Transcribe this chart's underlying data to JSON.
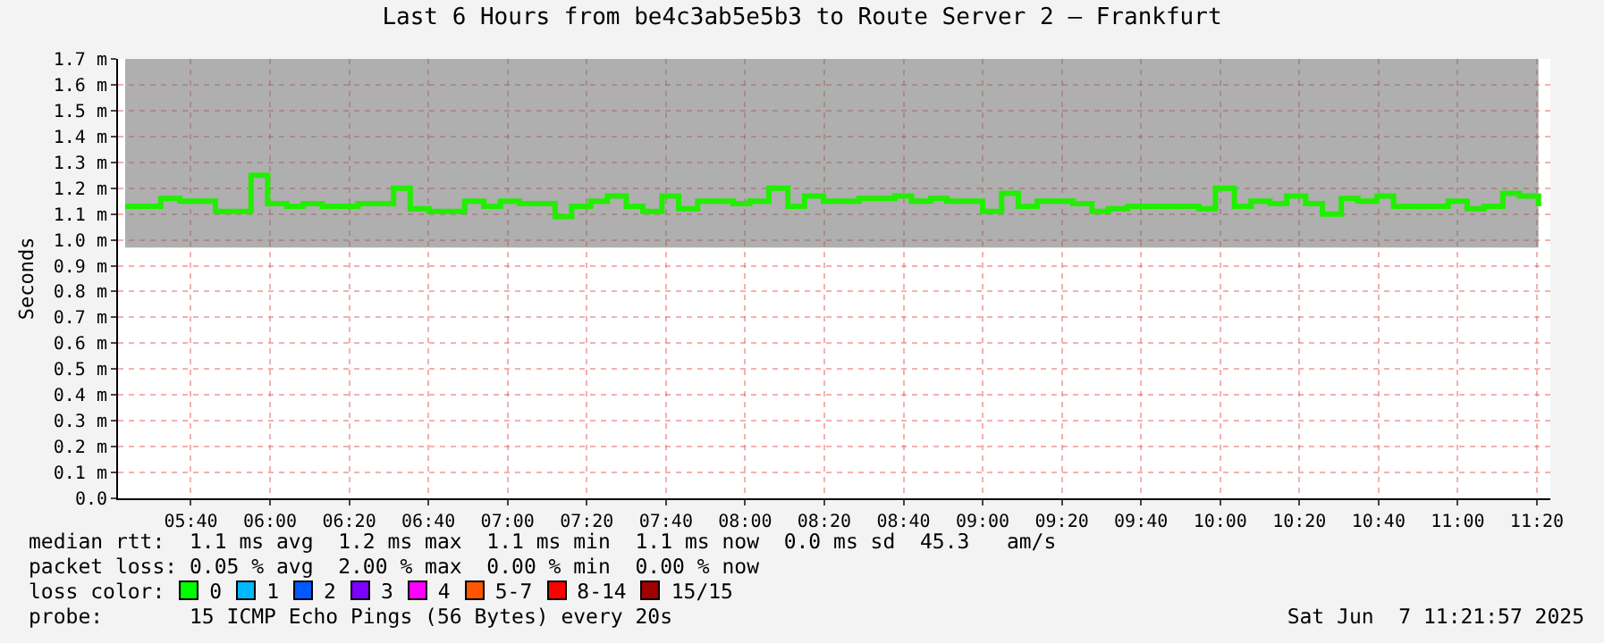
{
  "chart_data": {
    "type": "step",
    "title": "Last 6 Hours from be4c3ab5e5b3 to Route Server 2 – Frankfurt",
    "ylabel": "Seconds",
    "x": [
      5.39,
      5.47,
      5.54,
      5.62,
      5.69,
      5.77,
      5.84,
      5.92,
      5.99,
      6.07,
      6.14,
      6.22,
      6.29,
      6.37,
      6.44,
      6.52,
      6.59,
      6.67,
      6.74,
      6.82,
      6.9,
      6.97,
      7.05,
      7.12,
      7.2,
      7.27,
      7.35,
      7.42,
      7.5,
      7.57,
      7.65,
      7.72,
      7.8,
      7.87,
      7.95,
      8.02,
      8.1,
      8.18,
      8.25,
      8.33,
      8.4,
      8.48,
      8.55,
      8.63,
      8.7,
      8.78,
      8.85,
      8.93,
      9.0,
      9.08,
      9.15,
      9.23,
      9.3,
      9.38,
      9.46,
      9.53,
      9.61,
      9.68,
      9.76,
      9.83,
      9.91,
      9.98,
      10.06,
      10.13,
      10.21,
      10.28,
      10.36,
      10.43,
      10.51,
      10.58,
      10.66,
      10.73,
      10.81,
      10.89,
      10.96,
      11.04,
      11.11,
      11.19,
      11.26,
      11.34
    ],
    "series": [
      {
        "color": "#22ee00",
        "values": [
          1.13,
          1.13,
          1.16,
          1.15,
          1.15,
          1.11,
          1.11,
          1.25,
          1.14,
          1.13,
          1.14,
          1.13,
          1.13,
          1.14,
          1.14,
          1.2,
          1.12,
          1.11,
          1.11,
          1.15,
          1.13,
          1.15,
          1.14,
          1.14,
          1.09,
          1.13,
          1.15,
          1.17,
          1.13,
          1.11,
          1.17,
          1.12,
          1.15,
          1.15,
          1.14,
          1.15,
          1.2,
          1.13,
          1.17,
          1.15,
          1.15,
          1.16,
          1.16,
          1.17,
          1.15,
          1.16,
          1.15,
          1.15,
          1.11,
          1.18,
          1.13,
          1.15,
          1.15,
          1.14,
          1.11,
          1.12,
          1.13,
          1.13,
          1.13,
          1.13,
          1.12,
          1.2,
          1.13,
          1.15,
          1.14,
          1.17,
          1.14,
          1.1,
          1.16,
          1.15,
          1.17,
          1.13,
          1.13,
          1.13,
          1.15,
          1.12,
          1.13,
          1.18,
          1.17,
          1.13
        ],
        "lower": [
          0.97,
          0.97,
          0.97,
          0.97,
          0.97,
          0.97,
          0.97,
          0.97,
          0.97,
          0.97,
          0.97,
          0.97,
          0.97,
          0.97,
          0.97,
          0.97,
          0.97,
          0.97,
          0.97,
          0.97,
          0.97,
          0.97,
          0.97,
          0.97,
          0.97,
          0.97,
          0.97,
          0.97,
          0.97,
          0.97,
          0.97,
          0.97,
          0.97,
          0.97,
          0.97,
          0.97,
          0.97,
          0.97,
          0.97,
          0.97,
          0.97,
          0.97,
          0.97,
          0.97,
          0.97,
          0.97,
          0.97,
          0.97,
          0.97,
          0.97,
          0.97,
          0.97,
          0.97,
          0.97,
          0.97,
          0.97,
          0.97,
          0.97,
          0.97,
          0.97,
          0.97,
          0.97,
          0.97,
          0.97,
          0.97,
          0.97,
          0.97,
          0.97,
          0.97,
          0.97,
          0.97,
          0.97,
          0.97,
          0.97,
          0.97,
          0.97,
          0.97,
          0.97,
          0.97,
          0.97
        ],
        "upper": [
          1.7,
          1.7,
          1.7,
          1.7,
          1.7,
          1.7,
          1.7,
          1.7,
          1.7,
          1.7,
          1.7,
          1.7,
          1.7,
          1.7,
          1.7,
          1.7,
          1.7,
          1.7,
          1.7,
          1.7,
          1.7,
          1.7,
          1.7,
          1.7,
          1.7,
          1.7,
          1.7,
          1.7,
          1.7,
          1.7,
          1.7,
          1.7,
          1.7,
          1.7,
          1.7,
          1.7,
          1.7,
          1.7,
          1.7,
          1.7,
          1.7,
          1.7,
          1.7,
          1.7,
          1.7,
          1.7,
          1.7,
          1.7,
          1.7,
          1.7,
          1.7,
          1.7,
          1.7,
          1.7,
          1.7,
          1.7,
          1.7,
          1.7,
          1.7,
          1.7,
          1.7,
          1.7,
          1.7,
          1.7,
          1.7,
          1.7,
          1.7,
          1.7,
          1.7,
          1.7,
          1.7,
          1.7,
          1.7,
          1.7,
          1.7,
          1.7,
          1.7,
          1.7,
          1.7,
          1.7
        ]
      }
    ],
    "xlim": [
      5.36,
      11.39
    ],
    "xticks": [
      {
        "value": 5.6667,
        "label": "05:40"
      },
      {
        "value": 6,
        "label": "06:00"
      },
      {
        "value": 6.3333,
        "label": "06:20"
      },
      {
        "value": 6.6667,
        "label": "06:40"
      },
      {
        "value": 7,
        "label": "07:00"
      },
      {
        "value": 7.3333,
        "label": "07:20"
      },
      {
        "value": 7.6667,
        "label": "07:40"
      },
      {
        "value": 8,
        "label": "08:00"
      },
      {
        "value": 8.3333,
        "label": "08:20"
      },
      {
        "value": 8.6667,
        "label": "08:40"
      },
      {
        "value": 9,
        "label": "09:00"
      },
      {
        "value": 9.3333,
        "label": "09:20"
      },
      {
        "value": 9.6667,
        "label": "09:40"
      },
      {
        "value": 10,
        "label": "10:00"
      },
      {
        "value": 10.3333,
        "label": "10:20"
      },
      {
        "value": 10.6667,
        "label": "10:40"
      },
      {
        "value": 11,
        "label": "11:00"
      },
      {
        "value": 11.3333,
        "label": "11:20"
      }
    ],
    "ylim": [
      0,
      1.7
    ],
    "yticks": [
      {
        "value": 0,
        "label": "0.0"
      },
      {
        "value": 0.1,
        "label": "0.1 m"
      },
      {
        "value": 0.2,
        "label": "0.2 m"
      },
      {
        "value": 0.3,
        "label": "0.3 m"
      },
      {
        "value": 0.4,
        "label": "0.4 m"
      },
      {
        "value": 0.5,
        "label": "0.5 m"
      },
      {
        "value": 0.6,
        "label": "0.6 m"
      },
      {
        "value": 0.7,
        "label": "0.7 m"
      },
      {
        "value": 0.8,
        "label": "0.8 m"
      },
      {
        "value": 0.9,
        "label": "0.9 m"
      },
      {
        "value": 1,
        "label": "1.0 m"
      },
      {
        "value": 1.1,
        "label": "1.1 m"
      },
      {
        "value": 1.2,
        "label": "1.2 m"
      },
      {
        "value": 1.3,
        "label": "1.3 m"
      },
      {
        "value": 1.4,
        "label": "1.4 m"
      },
      {
        "value": 1.5,
        "label": "1.5 m"
      },
      {
        "value": 1.6,
        "label": "1.6 m"
      },
      {
        "value": 1.7,
        "label": "1.7 m"
      }
    ],
    "grid": true,
    "legend": false,
    "annotations": [
      "median rtt:  1.1 ms avg  1.2 ms max  1.1 ms min  1.1 ms now  0.0 ms sd  45.3   am/s",
      "packet loss: 0.05 % avg  2.00 % max  0.00 % min  0.00 % now",
      "loss color:",
      "0",
      "1",
      "2",
      "3",
      "4",
      "5-7",
      "8-14",
      "15/15",
      "probe:       15 ICMP Echo Pings (56 Bytes) every 20s",
      "Sat Jun  7 11:21:57 2025"
    ]
  }
}
